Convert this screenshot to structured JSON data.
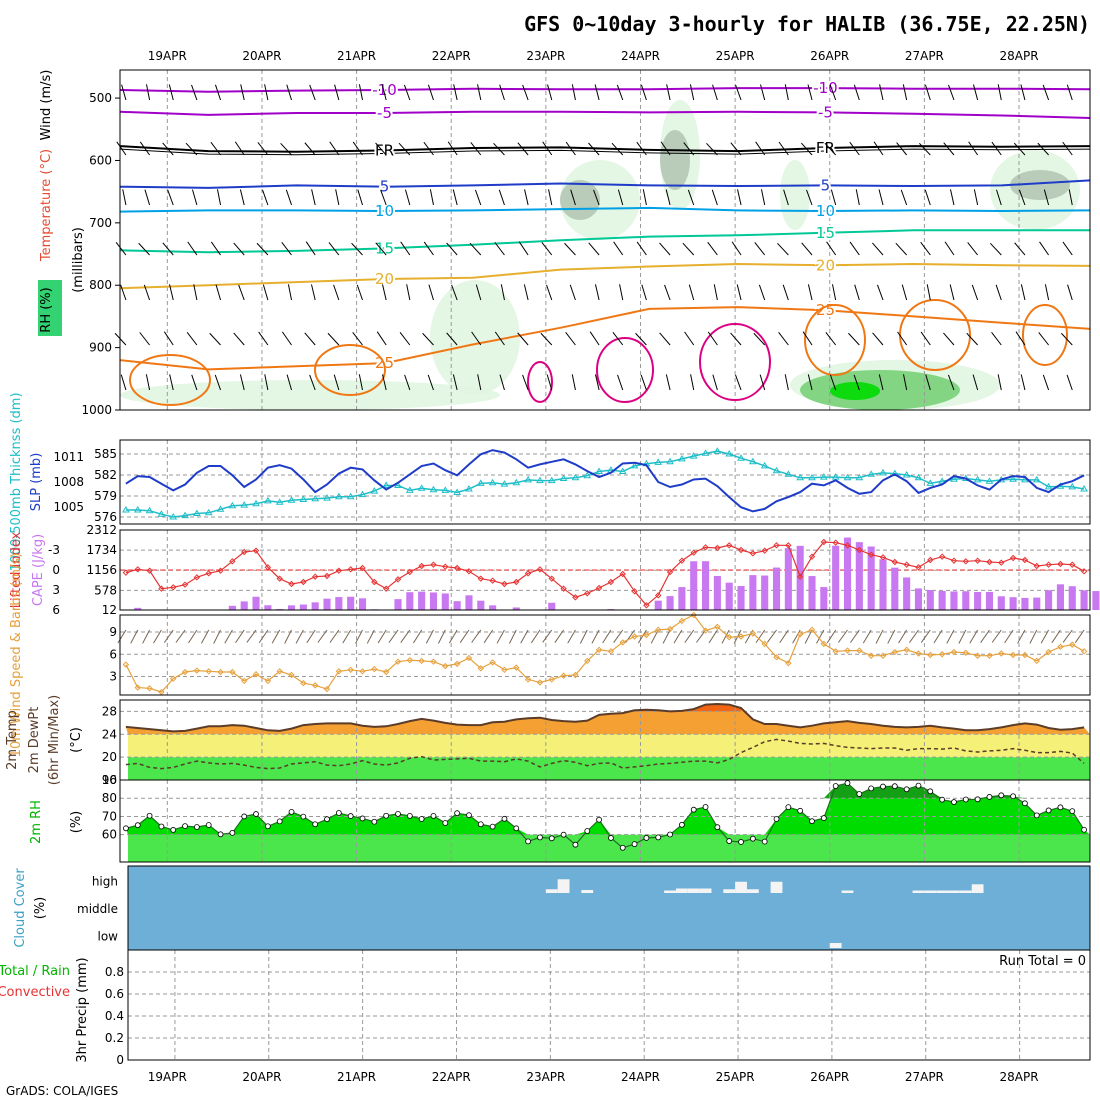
{
  "title": "GFS 0~10day 3-hourly for HALIB (36.75E, 22.25N)",
  "credit": "GrADS: COLA/IGES",
  "chart_data": {
    "type": "meteogram",
    "dates": [
      "19APR",
      "20APR",
      "21APR",
      "22APR",
      "23APR",
      "24APR",
      "25APR",
      "26APR",
      "27APR",
      "28APR"
    ],
    "steps_per_day": 8,
    "n_steps": 82,
    "colors": {
      "purple": "#a000c8",
      "black": "#000000",
      "blue": "#1e3cc8",
      "lightblue": "#00a0e6",
      "teal": "#00c896",
      "gold": "#e6af2d",
      "orange": "#f07814",
      "magenta": "#dc0082",
      "rh_light": "#e1f5e1",
      "rh_mid": "#b4c8b4",
      "rh_dark": "#8c9b8c",
      "thick": "#1ebec8",
      "slp": "#1e3cc8",
      "li": "#e63232",
      "cape": "#c878f0",
      "wind": "#e6a03c",
      "temp": "#f5a032",
      "dew": "#5a3c28",
      "rh2": "#00dc00",
      "cloud": "#6eafd7"
    },
    "panels": [
      {
        "id": "profile",
        "ylabel_parts": [
          "RH (%)",
          "Temperature (°C)",
          "Wind (m/s)"
        ],
        "axis_label": "(millibars)",
        "yticks": [
          500,
          600,
          700,
          800,
          900,
          1000
        ],
        "ylim": [
          455,
          1000
        ],
        "isotherms": [
          {
            "label": "-10",
            "color": "purple",
            "p": [
              487,
              490,
              488,
              487,
              485,
              486,
              486,
              484,
              484,
              485,
              485,
              486
            ]
          },
          {
            "label": "-5",
            "color": "purple",
            "p": [
              522,
              527,
              524,
              524,
              522,
              522,
              523,
              522,
              523,
              525,
              528,
              532
            ]
          },
          {
            "label": "FR",
            "color": "black",
            "p": [
              577,
              585,
              586,
              584,
              580,
              579,
              583,
              585,
              580,
              577,
              578,
              577
            ]
          },
          {
            "label": "5",
            "color": "blue",
            "p": [
              642,
              644,
              640,
              642,
              640,
              637,
              640,
              641,
              640,
              641,
              640,
              632
            ]
          },
          {
            "label": "10",
            "color": "lightblue",
            "p": [
              682,
              680,
              680,
              681,
              680,
              678,
              676,
              680,
              681,
              680,
              681,
              680
            ]
          },
          {
            "label": "15",
            "color": "teal",
            "p": [
              744,
              747,
              745,
              741,
              735,
              728,
              722,
              720,
              716,
              712,
              712,
              712
            ]
          },
          {
            "label": "20",
            "color": "gold",
            "p": [
              805,
              800,
              795,
              790,
              788,
              775,
              770,
              766,
              768,
              766,
              768,
              769
            ]
          },
          {
            "label": "25",
            "color": "orange",
            "p": [
              920,
              935,
              930,
              925,
              895,
              868,
              838,
              835,
              840,
              850,
              860,
              870
            ]
          }
        ]
      },
      {
        "id": "thickness_slp",
        "ylabel_left": "1000-500mb Thicknss (dm)",
        "ylabel_right": "SLP (mb)",
        "thick_ticks": [
          576,
          579,
          582,
          585
        ],
        "slp_ticks": [
          1005,
          1008,
          1011
        ],
        "thick_ylim": [
          575,
          587
        ],
        "slp_ylim": [
          1003,
          1013
        ],
        "thickness": [
          577.0,
          577.0,
          576.9,
          576.4,
          576.0,
          576.2,
          576.5,
          576.6,
          577.1,
          577.6,
          577.7,
          577.9,
          578.3,
          578.1,
          578.4,
          578.5,
          578.6,
          578.7,
          578.9,
          578.9,
          579.2,
          579.7,
          580.5,
          580.5,
          579.8,
          580.1,
          579.9,
          579.8,
          579.5,
          580.0,
          580.8,
          580.9,
          580.7,
          580.9,
          581.3,
          581.2,
          581.2,
          581.5,
          581.6,
          581.9,
          582.5,
          582.7,
          582.5,
          583.3,
          583.6,
          583.8,
          583.9,
          584.3,
          584.7,
          585.1,
          585.4,
          585.0,
          584.4,
          583.9,
          583.3,
          582.6,
          582.1,
          581.6,
          581.6,
          581.7,
          581.7,
          581.6,
          581.6,
          582.1,
          582.3,
          582.2,
          582.0,
          581.6,
          580.8,
          581.1,
          581.4,
          581.5,
          581.3,
          581.1,
          581.3,
          581.4,
          581.3,
          581.3,
          580.3,
          580.4,
          580.3,
          580.0
        ],
        "slp": [
          1007.8,
          1008.7,
          1008.6,
          1007.8,
          1007.0,
          1007.7,
          1009.1,
          1009.9,
          1009.9,
          1008.8,
          1007.4,
          1008.3,
          1009.7,
          1010.0,
          1009.6,
          1008.3,
          1006.8,
          1007.7,
          1009.0,
          1009.7,
          1009.5,
          1008.2,
          1007.1,
          1007.9,
          1008.9,
          1009.9,
          1010.2,
          1009.4,
          1008.8,
          1010.1,
          1011.3,
          1011.8,
          1011.5,
          1010.7,
          1009.7,
          1010.1,
          1010.4,
          1010.7,
          1010.1,
          1009.3,
          1008.6,
          1009.1,
          1010.2,
          1010.3,
          1010.0,
          1008.0,
          1007.4,
          1007.7,
          1008.3,
          1008.4,
          1007.5,
          1006.2,
          1005.0,
          1004.5,
          1004.8,
          1005.7,
          1006.2,
          1006.8,
          1007.8,
          1007.6,
          1008.2,
          1007.3,
          1006.6,
          1006.8,
          1008.2,
          1008.9,
          1008.1,
          1006.7,
          1007.3,
          1007.7,
          1008.7,
          1008.4,
          1007.6,
          1007.1,
          1008.3,
          1008.7,
          1008.6,
          1007.3,
          1006.8,
          1007.7,
          1008.1,
          1008.8
        ]
      },
      {
        "id": "li_cape",
        "ylabel_left": "Lifted Index",
        "ylabel_right": "CAPE (J/kg)",
        "li_ticks": [
          -3,
          0,
          3,
          6
        ],
        "cape_ticks": [
          12,
          578,
          1156,
          1734,
          2312
        ],
        "li_ylim": [
          6,
          -6
        ],
        "cape_ylim": [
          12,
          2312
        ],
        "lifted_index": [
          0.4,
          -0.1,
          0.1,
          2.8,
          2.6,
          2.2,
          1.1,
          0.5,
          0.1,
          -1.3,
          -2.7,
          -2.9,
          -0.4,
          1.3,
          2.1,
          1.8,
          1.0,
          0.9,
          0.1,
          -0.1,
          -0.3,
          1.8,
          2.8,
          1.4,
          0.3,
          -0.6,
          -0.8,
          -0.5,
          -0.3,
          0.2,
          1.3,
          1.6,
          2.1,
          1.8,
          0.5,
          -0.1,
          1.3,
          2.8,
          4.1,
          3.5,
          2.7,
          1.8,
          0.6,
          3.2,
          5.3,
          3.8,
          0.3,
          -1.4,
          -2.6,
          -3.4,
          -3.3,
          -3.7,
          -3.0,
          -2.5,
          -2.9,
          -3.7,
          -3.7,
          1.0,
          -2.0,
          -4.2,
          -4.1,
          -3.7,
          -3.0,
          -2.3,
          -1.9,
          -1.2,
          -0.8,
          -0.4,
          -1.5,
          -2.0,
          -1.4,
          -1.3,
          -1.4,
          -1.2,
          -1.1,
          -1.8,
          -1.5,
          -0.6,
          -0.8,
          -0.9,
          -0.8,
          0.2
        ],
        "cape": [
          0,
          74,
          0,
          0,
          0,
          0,
          0,
          0,
          0,
          132,
          259,
          393,
          148,
          40,
          145,
          169,
          233,
          338,
          383,
          393,
          348,
          33,
          0,
          324,
          524,
          540,
          516,
          487,
          265,
          434,
          280,
          145,
          0,
          85,
          21,
          0,
          220,
          0,
          0,
          21,
          0,
          39,
          0,
          0,
          0,
          280,
          412,
          670,
          1414,
          1415,
          991,
          798,
          701,
          1015,
          1003,
          1232,
          1791,
          1857,
          988,
          671,
          1860,
          2095,
          1963,
          1837,
          1469,
          1229,
          948,
          632,
          587,
          560,
          546,
          552,
          530,
          533,
          406,
          380,
          360,
          370,
          582,
          750,
          696,
          577,
          557,
          175
        ]
      },
      {
        "id": "wind10m",
        "ylabel_left": "10m Wind Speed & Barbs (m/s)",
        "yticks": [
          3,
          6,
          9
        ],
        "ylim": [
          0.5,
          11.3
        ],
        "speed": [
          4.6,
          1.5,
          1.4,
          0.9,
          2.7,
          3.6,
          3.8,
          3.7,
          3.6,
          3.6,
          2.4,
          3.3,
          2.4,
          3.7,
          3.2,
          2.1,
          1.8,
          1.3,
          3.7,
          3.9,
          3.7,
          4.0,
          3.6,
          5.0,
          5.2,
          5.1,
          5.0,
          4.4,
          4.7,
          5.5,
          4.1,
          4.9,
          3.9,
          4.2,
          2.6,
          2.2,
          2.6,
          3.1,
          3.2,
          5.1,
          6.6,
          6.4,
          7.6,
          8.4,
          8.6,
          9.3,
          9.4,
          10.5,
          11.3,
          9.2,
          9.7,
          8.3,
          8.4,
          8.8,
          7.4,
          5.6,
          4.8,
          8.7,
          9.3,
          7.4,
          6.4,
          6.5,
          6.5,
          5.8,
          5.8,
          6.3,
          6.6,
          6.1,
          5.9,
          6.0,
          6.3,
          6.2,
          5.8,
          5.8,
          6.1,
          5.9,
          5.9,
          5.1,
          6.3,
          7.0,
          7.3,
          6.4
        ]
      },
      {
        "id": "temp2m",
        "ylabel_parts": [
          "2m Temp",
          "2m DewPt",
          "(6hr Min/Max)"
        ],
        "axis_label": "(°C)",
        "yticks": [
          16,
          20,
          24,
          28
        ],
        "ylim": [
          16,
          30
        ],
        "temp": [
          25.3,
          25.1,
          24.9,
          24.7,
          24.5,
          24.6,
          25.0,
          25.4,
          25.4,
          25.6,
          25.5,
          25.1,
          24.7,
          24.6,
          25.0,
          25.6,
          25.8,
          25.9,
          25.9,
          25.9,
          25.5,
          25.3,
          25.4,
          25.8,
          26.3,
          26.7,
          26.4,
          26.0,
          25.7,
          25.6,
          25.6,
          26.1,
          26.2,
          26.6,
          26.8,
          26.9,
          26.5,
          26.3,
          26.2,
          26.4,
          27.4,
          27.6,
          27.7,
          28.2,
          28.3,
          28.2,
          28.0,
          28.1,
          28.4,
          29.2,
          29.3,
          29.2,
          28.6,
          26.6,
          25.8,
          25.8,
          25.5,
          25.2,
          25.5,
          25.9,
          26.1,
          26.3,
          26.0,
          25.8,
          25.5,
          25.3,
          25.2,
          25.3,
          25.5,
          25.2,
          25.0,
          24.7,
          24.7,
          24.9,
          25.2,
          25.6,
          25.9,
          25.7,
          25.1,
          24.8,
          24.9,
          25.2
        ],
        "dewpoint": [
          18.7,
          18.9,
          18.2,
          18.0,
          18.2,
          18.8,
          19.3,
          19.0,
          18.8,
          18.9,
          18.6,
          18.2,
          18.0,
          18.1,
          18.8,
          19.0,
          19.2,
          18.6,
          18.5,
          18.8,
          19.4,
          18.8,
          18.6,
          19.0,
          19.8,
          20.1,
          19.5,
          19.6,
          19.7,
          19.8,
          19.3,
          19.3,
          19.2,
          19.7,
          19.3,
          18.3,
          18.9,
          19.4,
          19.1,
          18.5,
          18.9,
          19.0,
          18.1,
          18.3,
          18.5,
          18.8,
          18.9,
          19.1,
          19.3,
          19.3,
          19.0,
          19.6,
          20.8,
          21.7,
          22.7,
          23.1,
          22.8,
          22.4,
          22.3,
          22.4,
          22.0,
          21.7,
          21.6,
          21.5,
          21.6,
          21.6,
          21.2,
          21.5,
          21.5,
          21.4,
          21.6,
          21.1,
          20.9,
          21.1,
          21.2,
          21.5,
          21.2,
          20.8,
          20.8,
          21.0,
          20.7,
          18.9
        ]
      },
      {
        "id": "rh2m",
        "ylabel_left": "2m RH",
        "axis_label": "(%)",
        "yticks": [
          60,
          70,
          80,
          90
        ],
        "ylim": [
          45,
          90
        ],
        "rh": [
          63.5,
          65.2,
          70.4,
          64.5,
          62.6,
          64.7,
          64.2,
          65.3,
          60.2,
          61.0,
          70.0,
          71.3,
          64.6,
          67.3,
          72.5,
          69.9,
          65.7,
          68.5,
          71.9,
          70.2,
          68.9,
          67.1,
          70.4,
          71.4,
          70.3,
          68.6,
          70.3,
          66.4,
          71.8,
          70.7,
          65.7,
          64.4,
          68.7,
          63.5,
          56.3,
          58.5,
          58.0,
          60.0,
          54.5,
          62.0,
          68.2,
          58.2,
          52.8,
          54.8,
          58.2,
          58.5,
          60.1,
          65.4,
          73.7,
          75.2,
          64.1,
          56.5,
          56.0,
          57.8,
          56.2,
          68.6,
          75.1,
          73.1,
          67.4,
          69.1,
          86.7,
          88.3,
          82.3,
          85.4,
          86.4,
          86.6,
          84.9,
          86.9,
          83.8,
          79.2,
          77.9,
          79.3,
          79.4,
          80.7,
          81.6,
          81.1,
          77.2,
          70.6,
          73.3,
          75.0,
          72.9,
          62.7
        ]
      },
      {
        "id": "cloud",
        "ylabel_left": "Cloud Cover",
        "axis_label": "(%)",
        "levels": [
          "high",
          "middle",
          "low"
        ],
        "blocks": [
          {
            "level": "high",
            "i": 36,
            "w": 1,
            "v": 0.15
          },
          {
            "level": "high",
            "i": 37,
            "w": 1,
            "v": 0.55
          },
          {
            "level": "high",
            "i": 39,
            "w": 1,
            "v": 0.12
          },
          {
            "level": "high",
            "i": 46,
            "w": 1,
            "v": 0.1
          },
          {
            "level": "high",
            "i": 47,
            "w": 1,
            "v": 0.18
          },
          {
            "level": "high",
            "i": 48,
            "w": 1,
            "v": 0.18
          },
          {
            "level": "high",
            "i": 49,
            "w": 1,
            "v": 0.18
          },
          {
            "level": "high",
            "i": 51,
            "w": 1,
            "v": 0.15
          },
          {
            "level": "high",
            "i": 52,
            "w": 1,
            "v": 0.45
          },
          {
            "level": "high",
            "i": 53,
            "w": 1,
            "v": 0.15
          },
          {
            "level": "high",
            "i": 55,
            "w": 1,
            "v": 0.45
          },
          {
            "level": "high",
            "i": 61,
            "w": 1,
            "v": 0.1
          },
          {
            "level": "high",
            "i": 67,
            "w": 1,
            "v": 0.1
          },
          {
            "level": "high",
            "i": 68,
            "w": 1,
            "v": 0.1
          },
          {
            "level": "high",
            "i": 69,
            "w": 1,
            "v": 0.1
          },
          {
            "level": "high",
            "i": 70,
            "w": 1,
            "v": 0.1
          },
          {
            "level": "high",
            "i": 71,
            "w": 1,
            "v": 0.1
          },
          {
            "level": "high",
            "i": 72,
            "w": 1,
            "v": 0.35
          },
          {
            "level": "low",
            "i": 60,
            "w": 1,
            "v": 0.2
          }
        ]
      },
      {
        "id": "precip",
        "ylabel_parts": [
          "Total / Rain",
          "Convective",
          "3hr Precip (mm)"
        ],
        "yticks": [
          0,
          0.2,
          0.4,
          0.6,
          0.8
        ],
        "ylim": [
          0,
          1
        ],
        "run_total": "Run Total = 0",
        "values": []
      }
    ]
  }
}
